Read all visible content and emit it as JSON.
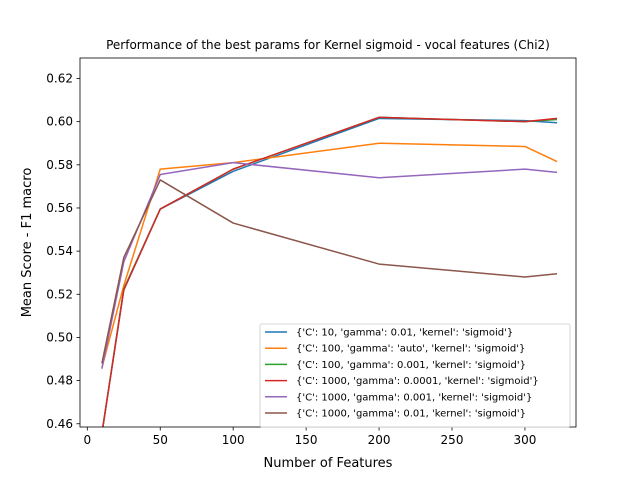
{
  "chart_data": {
    "type": "line",
    "title": "Performance of the best params for Kernel sigmoid - vocal features (Chi2)",
    "xlabel": "Number of Features",
    "ylabel": "Mean Score - F1 macro",
    "xlim": [
      -5,
      335
    ],
    "ylim": [
      0.4585,
      0.6295
    ],
    "xticks": [
      0,
      50,
      100,
      150,
      200,
      250,
      300
    ],
    "xtick_labels": [
      "0",
      "50",
      "100",
      "150",
      "200",
      "250",
      "300"
    ],
    "yticks": [
      0.46,
      0.48,
      0.5,
      0.52,
      0.54,
      0.56,
      0.58,
      0.6,
      0.62
    ],
    "ytick_labels": [
      "0.46",
      "0.48",
      "0.50",
      "0.52",
      "0.54",
      "0.56",
      "0.58",
      "0.60",
      "0.62"
    ],
    "grid": false,
    "legend_position": "lower-right",
    "x": [
      10,
      25,
      50,
      100,
      200,
      300,
      322
    ],
    "series": [
      {
        "name": "{'C': 10, 'gamma': 0.01, 'kernel': 'sigmoid'}",
        "color": "#1f77b4",
        "values": [
          0.4555,
          0.522,
          0.5595,
          0.577,
          0.6015,
          0.6005,
          0.5995
        ]
      },
      {
        "name": "{'C': 100, 'gamma': 'auto', 'kernel': 'sigmoid'}",
        "color": "#ff7f0e",
        "values": [
          0.486,
          0.524,
          0.578,
          0.581,
          0.59,
          0.5885,
          0.5815
        ]
      },
      {
        "name": "{'C': 100, 'gamma': 0.001, 'kernel': 'sigmoid'}",
        "color": "#2ca02c",
        "values": [
          0.4555,
          0.5225,
          0.5595,
          0.578,
          0.602,
          0.6,
          0.601
        ]
      },
      {
        "name": "{'C': 1000, 'gamma': 0.0001, 'kernel': 'sigmoid'}",
        "color": "#d62728",
        "values": [
          0.4555,
          0.522,
          0.5595,
          0.578,
          0.602,
          0.6,
          0.6015
        ]
      },
      {
        "name": "{'C': 1000, 'gamma': 0.001, 'kernel': 'sigmoid'}",
        "color": "#9467bd",
        "values": [
          0.4855,
          0.535,
          0.5755,
          0.581,
          0.574,
          0.578,
          0.5765
        ]
      },
      {
        "name": "{'C': 1000, 'gamma': 0.01, 'kernel': 'sigmoid'}",
        "color": "#8c564b",
        "values": [
          0.488,
          0.537,
          0.573,
          0.553,
          0.534,
          0.528,
          0.5295
        ]
      }
    ]
  }
}
